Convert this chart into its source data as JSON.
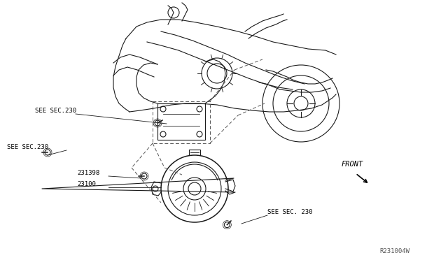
{
  "bg_color": "#ffffff",
  "line_color": "#1a1a1a",
  "dashed_color": "#555555",
  "text_color": "#000000",
  "diagram_ref": "R231004W",
  "labels": {
    "sec_sec_230_upper": "SEE SEC.230",
    "sec_sec_230_left": "SEE SEC.230",
    "part_231398": "231398",
    "part_23100": "23100",
    "sec_sec_230_lower": "SEE SEC. 230",
    "front": "FRONT"
  },
  "figsize": [
    6.4,
    3.72
  ],
  "dpi": 100
}
